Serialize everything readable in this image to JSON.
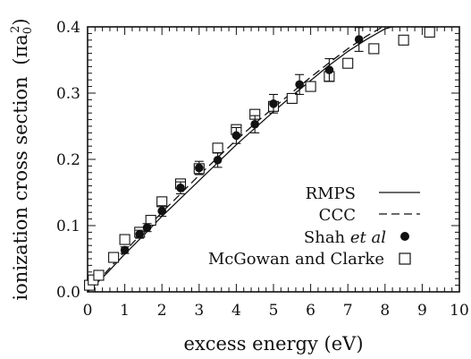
{
  "chart_data": {
    "type": "scatter",
    "xlabel": "excess energy (eV)",
    "ylabel_main": "ionization cross section",
    "ylabel_unit": "(πa",
    "ylabel_unit_sub": "0",
    "ylabel_unit_sup": "2",
    "ylabel_unit_close": ")",
    "xlim": [
      0,
      10
    ],
    "ylim": [
      0,
      0.4
    ],
    "x_ticks": [
      0,
      1,
      2,
      3,
      4,
      5,
      6,
      7,
      8,
      9,
      10
    ],
    "y_ticks": [
      0.0,
      0.1,
      0.2,
      0.3,
      0.4
    ],
    "x_tick_labels": [
      "0",
      "1",
      "2",
      "3",
      "4",
      "5",
      "6",
      "7",
      "8",
      "9",
      "10"
    ],
    "y_tick_labels": [
      "0.0",
      "0.1",
      "0.2",
      "0.3",
      "0.4"
    ],
    "legend_position": "lower-right",
    "grid": false,
    "series": [
      {
        "name": "RMPS",
        "style": "solid",
        "x": [
          0,
          0.5,
          1,
          1.5,
          2,
          2.5,
          3,
          3.5,
          4,
          4.5,
          5,
          5.5,
          6,
          6.5,
          7,
          7.5,
          8,
          8.5
        ],
        "y": [
          0,
          0.027,
          0.057,
          0.085,
          0.114,
          0.141,
          0.168,
          0.195,
          0.222,
          0.247,
          0.272,
          0.296,
          0.319,
          0.342,
          0.363,
          0.381,
          0.397,
          0.405
        ]
      },
      {
        "name": "CCC",
        "style": "dashed",
        "x": [
          0,
          0.5,
          1,
          1.5,
          2,
          2.5,
          3,
          3.5,
          4,
          4.5,
          5,
          5.5,
          6,
          6.5,
          7,
          7.5,
          8,
          8.5
        ],
        "y": [
          0,
          0.03,
          0.061,
          0.091,
          0.12,
          0.148,
          0.176,
          0.203,
          0.229,
          0.254,
          0.278,
          0.301,
          0.324,
          0.346,
          0.367,
          0.386,
          0.402,
          0.41
        ]
      },
      {
        "name": "Shah et al",
        "marker": "filled-circle",
        "x": [
          1.0,
          1.4,
          1.6,
          2.0,
          2.5,
          3.0,
          3.5,
          4.0,
          4.5,
          5.0,
          5.7,
          6.5,
          7.3
        ],
        "y": [
          0.063,
          0.087,
          0.097,
          0.122,
          0.157,
          0.187,
          0.199,
          0.236,
          0.253,
          0.284,
          0.313,
          0.335,
          0.381
        ],
        "err": [
          0.005,
          0.006,
          0.006,
          0.008,
          0.009,
          0.01,
          0.011,
          0.012,
          0.013,
          0.014,
          0.015,
          0.017,
          0.018
        ]
      },
      {
        "name": "McGowan and Clarke",
        "marker": "open-square",
        "x": [
          0.05,
          0.15,
          0.3,
          0.7,
          1.0,
          1.4,
          1.7,
          2.0,
          2.5,
          3.0,
          3.5,
          4.0,
          4.5,
          5.0,
          5.5,
          6.0,
          6.5,
          7.0,
          7.7,
          8.5,
          9.2
        ],
        "y": [
          0.01,
          0.018,
          0.025,
          0.052,
          0.079,
          0.09,
          0.108,
          0.136,
          0.163,
          0.186,
          0.217,
          0.245,
          0.268,
          0.28,
          0.292,
          0.31,
          0.325,
          0.345,
          0.367,
          0.38,
          0.392
        ]
      }
    ]
  }
}
